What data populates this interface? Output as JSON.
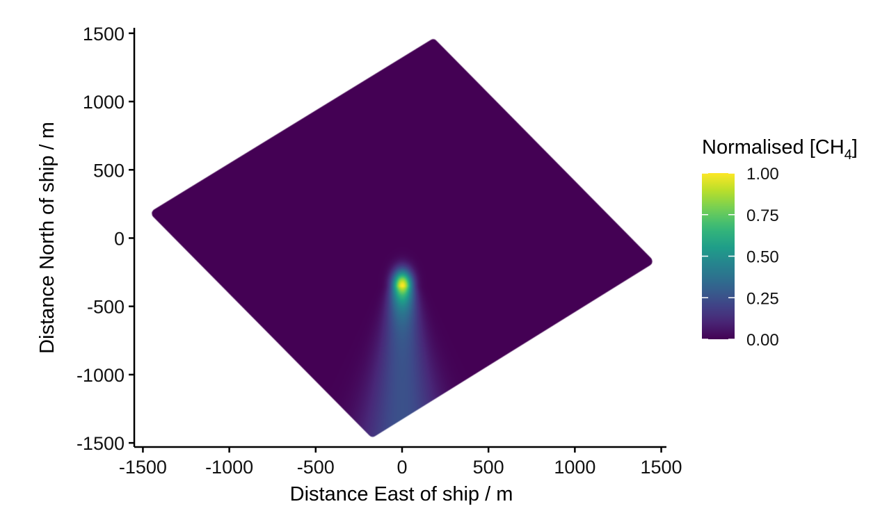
{
  "chart_data": {
    "type": "heatmap",
    "title": "",
    "xlabel": "Distance East of ship / m",
    "ylabel": "Distance North of ship / m",
    "xlim": [
      -1550,
      1530
    ],
    "ylim": [
      -1530,
      1540
    ],
    "x_ticks": [
      -1500,
      -1000,
      -500,
      0,
      500,
      1000,
      1500
    ],
    "x_tick_labels": [
      "-1500",
      "-1000",
      "-500",
      "0",
      "500",
      "1000",
      "1500"
    ],
    "y_ticks": [
      -1500,
      -1000,
      -500,
      0,
      500,
      1000,
      1500
    ],
    "y_tick_labels": [
      "-1500",
      "-1000",
      "-500",
      "0",
      "500",
      "1000",
      "1500"
    ],
    "grid": false,
    "domain_corners": [
      [
        180,
        1420
      ],
      [
        1420,
        -170
      ],
      [
        -170,
        -1420
      ],
      [
        -1420,
        180
      ]
    ],
    "plume": {
      "peak_x": 0,
      "peak_y": -350,
      "peak_value": 1.0,
      "direction": "south",
      "tail_value": 0.25
    },
    "colorbar": {
      "title": "Normalised [CH",
      "title_subscript": "4",
      "title_suffix": "]",
      "min": 0,
      "max": 1,
      "ticks": [
        0,
        0.25,
        0.5,
        0.75,
        1
      ],
      "tick_labels": [
        "0.00",
        "0.25",
        "0.50",
        "0.75",
        "1.00"
      ],
      "colormap": "viridis",
      "position": "right"
    }
  }
}
